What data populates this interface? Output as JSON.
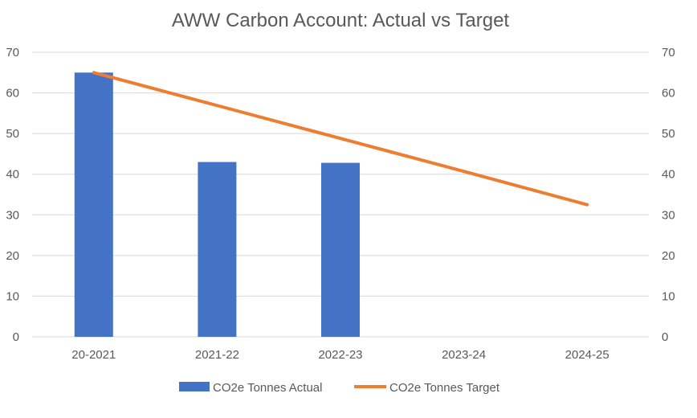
{
  "chart_data": {
    "type": "bar+line",
    "title": "AWW Carbon Account: Actual vs Target",
    "categories": [
      "20-2021",
      "2021-22",
      "2022-23",
      "2023-24",
      "2024-25"
    ],
    "series": [
      {
        "name": "CO2e Tonnes Actual",
        "type": "bar",
        "color": "#4472C4",
        "values": [
          65,
          43,
          42.8,
          null,
          null
        ]
      },
      {
        "name": "CO2e Tonnes Target",
        "type": "line",
        "color": "#ED7D31",
        "values": [
          65,
          56.9,
          48.8,
          40.7,
          32.5
        ]
      }
    ],
    "y_left": {
      "min": 0,
      "max": 70,
      "ticks": [
        0,
        10,
        20,
        30,
        40,
        50,
        60,
        70
      ]
    },
    "y_right": {
      "min": 0,
      "max": 70,
      "ticks": [
        0,
        10,
        20,
        30,
        40,
        50,
        60,
        70
      ]
    },
    "grid": true,
    "legend_position": "bottom"
  }
}
